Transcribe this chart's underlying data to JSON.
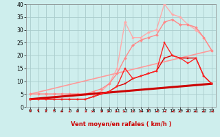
{
  "title": "",
  "xlabel": "Vent moyen/en rafales ( km/h )",
  "bg_color": "#ceeeed",
  "grid_color": "#aacccc",
  "xlim": [
    -0.5,
    23.5
  ],
  "ylim": [
    0,
    40
  ],
  "yticks": [
    0,
    5,
    10,
    15,
    20,
    25,
    30,
    35,
    40
  ],
  "xticks": [
    0,
    1,
    2,
    3,
    4,
    5,
    6,
    7,
    8,
    9,
    10,
    11,
    12,
    13,
    14,
    15,
    16,
    17,
    18,
    19,
    20,
    21,
    22,
    23
  ],
  "lines": [
    {
      "x": [
        0,
        23
      ],
      "y": [
        3,
        9
      ],
      "color": "#cc0000",
      "lw": 2.2,
      "marker": null,
      "zorder": 5
    },
    {
      "x": [
        0,
        1,
        2,
        3,
        4,
        5,
        6,
        7,
        8,
        9,
        10,
        11,
        12,
        13,
        14,
        15,
        16,
        17,
        18,
        19,
        20,
        21,
        22,
        23
      ],
      "y": [
        3,
        3,
        3,
        3,
        3,
        3,
        3,
        3,
        4,
        5,
        6,
        8,
        9,
        11,
        12,
        13,
        14,
        19,
        20,
        19,
        19,
        19,
        12,
        9
      ],
      "color": "#dd0000",
      "lw": 1.0,
      "marker": "s",
      "ms": 2.0,
      "zorder": 6
    },
    {
      "x": [
        0,
        1,
        2,
        3,
        4,
        5,
        6,
        7,
        8,
        9,
        10,
        11,
        12,
        13,
        14,
        15,
        16,
        17,
        18,
        19,
        20,
        21,
        22,
        23
      ],
      "y": [
        3,
        3,
        3,
        3,
        3,
        3,
        3,
        3,
        4,
        5,
        6,
        8,
        15,
        11,
        12,
        13,
        14,
        25,
        20,
        19,
        17,
        19,
        12,
        9
      ],
      "color": "#ff2222",
      "lw": 1.0,
      "marker": "s",
      "ms": 2.0,
      "zorder": 7
    },
    {
      "x": [
        0,
        23
      ],
      "y": [
        5,
        22
      ],
      "color": "#ff9999",
      "lw": 1.2,
      "marker": null,
      "zorder": 3
    },
    {
      "x": [
        0,
        1,
        2,
        3,
        4,
        5,
        6,
        7,
        8,
        9,
        10,
        11,
        12,
        13,
        14,
        15,
        16,
        17,
        18,
        19,
        20,
        21,
        22,
        23
      ],
      "y": [
        5,
        5,
        5,
        5,
        5,
        5,
        5,
        5,
        5,
        6,
        9,
        15,
        33,
        27,
        27,
        29,
        30,
        40,
        36,
        35,
        32,
        30,
        27,
        22
      ],
      "color": "#ffaaaa",
      "lw": 1.0,
      "marker": "D",
      "ms": 2.0,
      "zorder": 4
    },
    {
      "x": [
        0,
        1,
        2,
        3,
        4,
        5,
        6,
        7,
        8,
        9,
        10,
        11,
        12,
        13,
        14,
        15,
        16,
        17,
        18,
        19,
        20,
        21,
        22,
        23
      ],
      "y": [
        5,
        5,
        5,
        5,
        5,
        5,
        5,
        5,
        6,
        7,
        9,
        13,
        19,
        24,
        26,
        27,
        28,
        33,
        34,
        32,
        32,
        31,
        27,
        22
      ],
      "color": "#ff8888",
      "lw": 1.0,
      "marker": "D",
      "ms": 2.0,
      "zorder": 4
    }
  ],
  "arrow_color": "#cc0000",
  "arrow_dirs": [
    180,
    180,
    180,
    180,
    225,
    225,
    225,
    135,
    90,
    45,
    90,
    90,
    90,
    135,
    135,
    180,
    270,
    270,
    270,
    315,
    315,
    315,
    315,
    270
  ]
}
